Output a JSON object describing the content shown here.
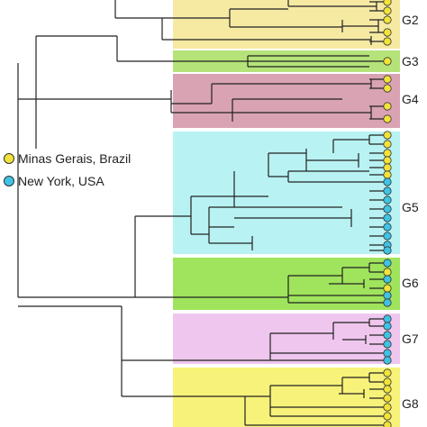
{
  "legend": {
    "items": [
      {
        "label": "Minas Gerais, Brazil",
        "color": "#f2e33a"
      },
      {
        "label": "New York, USA",
        "color": "#3fc3e5"
      }
    ]
  },
  "groups": [
    {
      "label": "G2",
      "color": "#f6eaa3"
    },
    {
      "label": "G3",
      "color": "#b5e37a"
    },
    {
      "label": "G4",
      "color": "#d9a3b4"
    },
    {
      "label": "G5",
      "color": "#b8f2f2"
    },
    {
      "label": "G6",
      "color": "#9fe45c"
    },
    {
      "label": "G7",
      "color": "#efc6ee"
    },
    {
      "label": "G8",
      "color": "#f7f27a"
    }
  ],
  "tip_colors": {
    "minas_gerais": "#f2e33a",
    "new_york": "#3fc3e5",
    "tip_stroke": "#333333",
    "branch": "#222222"
  }
}
